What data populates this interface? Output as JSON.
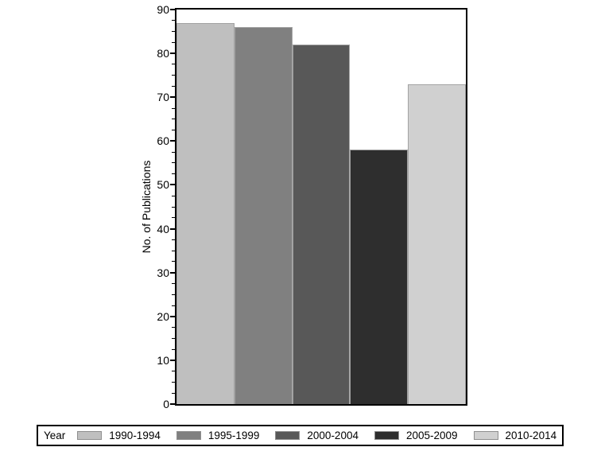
{
  "chart_data": {
    "type": "bar",
    "title": "",
    "ylabel": "No. of Publications",
    "xlabel": "",
    "legend_title": "Year",
    "legend_position": "bottom",
    "grid": false,
    "categories": [
      "1990-1994",
      "1995-1999",
      "2000-2004",
      "2005-2009",
      "2010-2014"
    ],
    "values": [
      87,
      86,
      82,
      58,
      73
    ],
    "colors": [
      "#bfbfbf",
      "#808080",
      "#585858",
      "#2e2e2e",
      "#d0d0d0"
    ],
    "bar_outline_color": "#a3a3a3",
    "ylim": [
      0,
      90
    ],
    "y_major_step": 10,
    "y_minor_step": 2.5,
    "y_tick_labels": [
      "0",
      "10",
      "20",
      "30",
      "40",
      "50",
      "60",
      "70",
      "80",
      "90"
    ],
    "axis_color": "#000000",
    "background_color": "#ffffff"
  }
}
